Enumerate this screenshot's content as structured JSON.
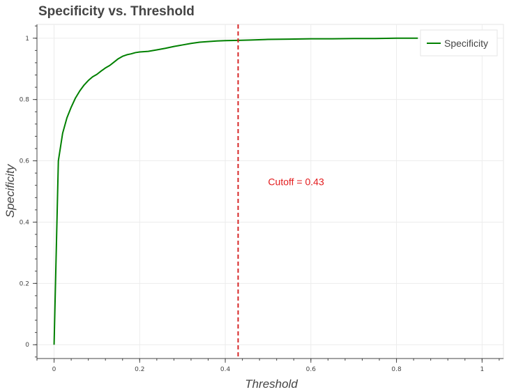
{
  "chart_data": {
    "type": "line",
    "title": "Specificity vs. Threshold",
    "xlabel": "Threshold",
    "ylabel": "Specificity",
    "xlim": [
      -0.04,
      1.05
    ],
    "ylim": [
      -0.045,
      1.045
    ],
    "x_ticks": [
      0,
      0.2,
      0.4,
      0.6,
      0.8,
      1
    ],
    "x_tick_labels": [
      "0",
      "0.2",
      "0.4",
      "0.6",
      "0.8",
      "1"
    ],
    "y_ticks": [
      0,
      0.2,
      0.4,
      0.6,
      0.8,
      1
    ],
    "y_tick_labels": [
      "0",
      "0.2",
      "0.4",
      "0.6",
      "0.8",
      "1"
    ],
    "grid": true,
    "legend_position": "top-right",
    "series": [
      {
        "name": "Specificity",
        "color": "#008000",
        "x": [
          0.0,
          0.01,
          0.02,
          0.03,
          0.04,
          0.05,
          0.06,
          0.07,
          0.08,
          0.09,
          0.1,
          0.11,
          0.12,
          0.13,
          0.14,
          0.15,
          0.16,
          0.17,
          0.18,
          0.19,
          0.2,
          0.22,
          0.24,
          0.26,
          0.28,
          0.3,
          0.32,
          0.34,
          0.36,
          0.38,
          0.4,
          0.43,
          0.46,
          0.5,
          0.55,
          0.6,
          0.65,
          0.7,
          0.75,
          0.8,
          0.85
        ],
        "y": [
          0.0,
          0.6,
          0.69,
          0.74,
          0.775,
          0.805,
          0.828,
          0.847,
          0.862,
          0.874,
          0.882,
          0.893,
          0.903,
          0.911,
          0.922,
          0.933,
          0.941,
          0.946,
          0.949,
          0.953,
          0.955,
          0.957,
          0.962,
          0.967,
          0.973,
          0.978,
          0.983,
          0.987,
          0.989,
          0.991,
          0.992,
          0.993,
          0.994,
          0.996,
          0.997,
          0.998,
          0.998,
          0.999,
          0.999,
          1.0,
          1.0
        ]
      }
    ],
    "annotations": [
      {
        "type": "vline",
        "x": 0.43,
        "color": "#d62728",
        "style": "dashed"
      },
      {
        "type": "text",
        "x": 0.5,
        "y": 0.52,
        "text": "Cutoff = 0.43",
        "color": "#e31a1c"
      }
    ]
  }
}
